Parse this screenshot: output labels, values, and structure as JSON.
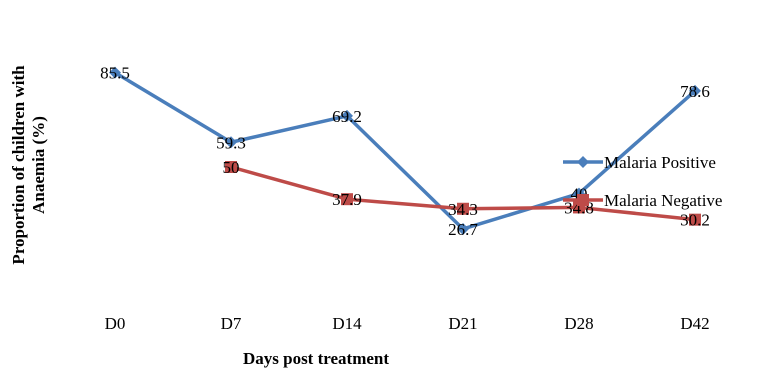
{
  "chart_data": {
    "type": "line",
    "categories": [
      "D0",
      "D7",
      "D14",
      "D21",
      "D28",
      "D42"
    ],
    "series": [
      {
        "name": "Malaria Positive",
        "values": [
          85.5,
          59.3,
          69.2,
          26.7,
          40,
          78.6
        ],
        "labels": [
          "85.5",
          "59.3",
          "69.2",
          "26.7",
          "40",
          "78.6"
        ],
        "color": "#4a7ebb",
        "marker": "diamond"
      },
      {
        "name": "Malaria Negative",
        "values": [
          null,
          50,
          37.9,
          34.3,
          34.8,
          30.2
        ],
        "labels": [
          "",
          "50",
          "37.9",
          "34.3",
          "34.8",
          "30.2"
        ],
        "color": "#be4b48",
        "marker": "square"
      }
    ],
    "title": "",
    "xlabel": "Days post treatment",
    "ylabel": "Proportion of children with Anaemia (%)",
    "ylabel_lines": [
      "Proportion of children with",
      "Anaemia (%)"
    ],
    "ylim": [
      0,
      100
    ],
    "grid": false,
    "legend": "right"
  }
}
